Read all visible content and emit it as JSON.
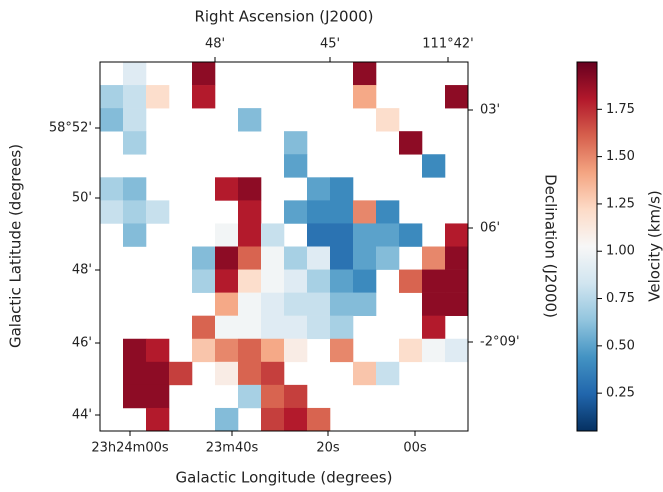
{
  "chart_data": {
    "type": "heatmap",
    "top_x_label": "Right Ascension (J2000)",
    "x_label": "Galactic Longitude (degrees)",
    "y_label": "Galactic Latitude (degrees)",
    "right_y_label": "Declination (J2000)",
    "top_xtick_labels": [
      "48'",
      "45'",
      "111°42'"
    ],
    "bottom_xtick_labels": [
      "23h24m00s",
      "23m40s",
      "20s",
      "00s"
    ],
    "left_ytick_labels": [
      "58°52'",
      "50'",
      "48'",
      "46'",
      "44'"
    ],
    "right_ytick_labels": [
      "03'",
      "06'",
      "-2°09'"
    ],
    "colormap": "RdBu_r",
    "z": [
      [
        null,
        0.9,
        null,
        null,
        1.9,
        null,
        null,
        null,
        null,
        null,
        null,
        1.9,
        null,
        null,
        null,
        null
      ],
      [
        0.7,
        0.8,
        1.2,
        null,
        1.8,
        null,
        null,
        null,
        null,
        null,
        null,
        1.4,
        null,
        null,
        null,
        1.9
      ],
      [
        0.6,
        0.8,
        null,
        null,
        null,
        null,
        0.6,
        null,
        null,
        null,
        null,
        null,
        1.2,
        null,
        null,
        null
      ],
      [
        null,
        0.7,
        null,
        null,
        null,
        null,
        null,
        null,
        0.6,
        null,
        null,
        null,
        null,
        1.9,
        null,
        null
      ],
      [
        null,
        null,
        null,
        null,
        null,
        null,
        null,
        null,
        0.5,
        null,
        null,
        null,
        null,
        null,
        0.4,
        null
      ],
      [
        0.7,
        0.6,
        null,
        null,
        null,
        1.8,
        1.9,
        null,
        null,
        0.5,
        0.4,
        null,
        null,
        null,
        null,
        null
      ],
      [
        0.8,
        0.7,
        0.8,
        null,
        null,
        null,
        1.8,
        null,
        0.5,
        0.4,
        0.4,
        1.5,
        0.4,
        null,
        null,
        null
      ],
      [
        null,
        0.6,
        null,
        null,
        null,
        1.0,
        1.8,
        0.8,
        null,
        0.3,
        0.3,
        0.5,
        0.5,
        0.4,
        null,
        1.8
      ],
      [
        null,
        null,
        null,
        null,
        0.6,
        1.9,
        1.6,
        1.0,
        0.7,
        0.9,
        0.3,
        0.5,
        0.6,
        null,
        1.5,
        1.9
      ],
      [
        null,
        null,
        null,
        null,
        0.7,
        1.8,
        1.2,
        1.0,
        0.9,
        0.7,
        0.5,
        0.4,
        null,
        1.6,
        1.9,
        1.9
      ],
      [
        null,
        null,
        null,
        null,
        null,
        1.4,
        1.0,
        0.9,
        0.8,
        0.8,
        0.6,
        0.6,
        null,
        null,
        1.9,
        1.9
      ],
      [
        null,
        null,
        null,
        null,
        1.6,
        1.0,
        1.0,
        0.9,
        0.9,
        0.8,
        0.7,
        null,
        null,
        null,
        1.8,
        null
      ],
      [
        null,
        1.9,
        1.8,
        null,
        1.3,
        1.5,
        1.6,
        1.4,
        1.1,
        null,
        1.5,
        null,
        null,
        1.2,
        1.0,
        0.9
      ],
      [
        null,
        1.9,
        1.9,
        1.7,
        null,
        1.1,
        1.6,
        1.7,
        null,
        null,
        null,
        1.3,
        0.8,
        null,
        null,
        null
      ],
      [
        null,
        1.9,
        1.9,
        null,
        null,
        null,
        0.7,
        1.6,
        1.7,
        null,
        null,
        null,
        null,
        null,
        null,
        null
      ],
      [
        null,
        null,
        1.8,
        null,
        null,
        0.6,
        null,
        1.7,
        1.8,
        1.6,
        null,
        null,
        null,
        null,
        null,
        null
      ]
    ],
    "colorbar": {
      "label": "Velocity (km/s)",
      "lim": [
        0.05,
        2.0
      ],
      "ticks": [
        0.25,
        {
          "value": 0.5,
          "label": "0.50"
        },
        0.75,
        {
          "value": 1,
          "label": "1.00"
        },
        1.25,
        {
          "value": 1.5,
          "label": "1.50"
        },
        1.75
      ]
    }
  }
}
